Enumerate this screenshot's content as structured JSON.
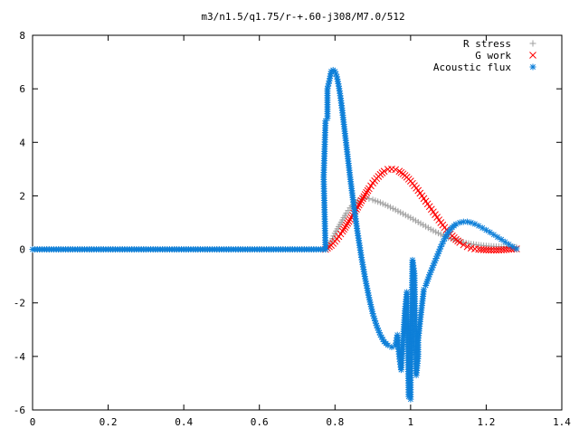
{
  "chart_data": {
    "type": "scatter",
    "title": "m3/n1.5/q1.75/r-+.60-j308/M7.0/512",
    "xlabel": "",
    "ylabel": "",
    "xlim": [
      0,
      1.4
    ],
    "ylim": [
      -6,
      8
    ],
    "x_ticks": [
      "0",
      "0.2",
      "0.4",
      "0.6",
      "0.8",
      "1",
      "1.2",
      "1.4"
    ],
    "y_ticks": [
      "-6",
      "-4",
      "-2",
      "0",
      "2",
      "4",
      "6",
      "8"
    ],
    "grid": false,
    "legend_placement": "top-right",
    "series": [
      {
        "name": "R stress",
        "color": "#a0a0a0",
        "marker": "plus",
        "points": [
          [
            0.0,
            0
          ],
          [
            0.1,
            0
          ],
          [
            0.2,
            0
          ],
          [
            0.3,
            0
          ],
          [
            0.4,
            0
          ],
          [
            0.5,
            0
          ],
          [
            0.6,
            0
          ],
          [
            0.7,
            0
          ],
          [
            0.775,
            0
          ],
          [
            0.78,
            0.05
          ],
          [
            0.79,
            0.3
          ],
          [
            0.8,
            0.6
          ],
          [
            0.81,
            0.85
          ],
          [
            0.82,
            1.1
          ],
          [
            0.83,
            1.35
          ],
          [
            0.84,
            1.55
          ],
          [
            0.85,
            1.7
          ],
          [
            0.86,
            1.82
          ],
          [
            0.87,
            1.9
          ],
          [
            0.88,
            1.92
          ],
          [
            0.89,
            1.9
          ],
          [
            0.9,
            1.85
          ],
          [
            0.92,
            1.75
          ],
          [
            0.94,
            1.62
          ],
          [
            0.96,
            1.48
          ],
          [
            0.98,
            1.33
          ],
          [
            1.0,
            1.18
          ],
          [
            1.02,
            1.02
          ],
          [
            1.04,
            0.86
          ],
          [
            1.06,
            0.7
          ],
          [
            1.08,
            0.56
          ],
          [
            1.1,
            0.44
          ],
          [
            1.12,
            0.34
          ],
          [
            1.14,
            0.26
          ],
          [
            1.16,
            0.2
          ],
          [
            1.18,
            0.16
          ],
          [
            1.2,
            0.13
          ],
          [
            1.22,
            0.11
          ],
          [
            1.24,
            0.1
          ],
          [
            1.26,
            0.09
          ],
          [
            1.28,
            0.08
          ]
        ]
      },
      {
        "name": "G work",
        "color": "#ff0000",
        "marker": "cross",
        "points": [
          [
            0.775,
            0
          ],
          [
            0.78,
            0.05
          ],
          [
            0.79,
            0.15
          ],
          [
            0.8,
            0.3
          ],
          [
            0.81,
            0.48
          ],
          [
            0.82,
            0.68
          ],
          [
            0.83,
            0.9
          ],
          [
            0.84,
            1.12
          ],
          [
            0.85,
            1.35
          ],
          [
            0.86,
            1.58
          ],
          [
            0.87,
            1.82
          ],
          [
            0.88,
            2.05
          ],
          [
            0.89,
            2.27
          ],
          [
            0.9,
            2.48
          ],
          [
            0.91,
            2.65
          ],
          [
            0.92,
            2.8
          ],
          [
            0.93,
            2.92
          ],
          [
            0.94,
            2.99
          ],
          [
            0.95,
            3.0
          ],
          [
            0.96,
            2.98
          ],
          [
            0.97,
            2.92
          ],
          [
            0.98,
            2.82
          ],
          [
            0.99,
            2.7
          ],
          [
            1.0,
            2.55
          ],
          [
            1.01,
            2.38
          ],
          [
            1.02,
            2.2
          ],
          [
            1.03,
            2.0
          ],
          [
            1.04,
            1.8
          ],
          [
            1.05,
            1.6
          ],
          [
            1.06,
            1.4
          ],
          [
            1.07,
            1.2
          ],
          [
            1.08,
            1.0
          ],
          [
            1.09,
            0.82
          ],
          [
            1.1,
            0.65
          ],
          [
            1.11,
            0.5
          ],
          [
            1.12,
            0.37
          ],
          [
            1.13,
            0.26
          ],
          [
            1.14,
            0.17
          ],
          [
            1.15,
            0.1
          ],
          [
            1.16,
            0.05
          ],
          [
            1.17,
            0.02
          ],
          [
            1.18,
            0.0
          ],
          [
            1.2,
            -0.02
          ],
          [
            1.22,
            -0.03
          ],
          [
            1.24,
            -0.02
          ],
          [
            1.26,
            0.0
          ],
          [
            1.28,
            0.02
          ]
        ]
      },
      {
        "name": "Acoustic flux",
        "color": "#0d7fd8",
        "marker": "star",
        "points": [
          [
            0.0,
            0
          ],
          [
            0.05,
            0
          ],
          [
            0.1,
            0
          ],
          [
            0.15,
            0
          ],
          [
            0.2,
            0
          ],
          [
            0.25,
            0
          ],
          [
            0.3,
            0
          ],
          [
            0.35,
            0
          ],
          [
            0.4,
            0
          ],
          [
            0.45,
            0
          ],
          [
            0.5,
            0
          ],
          [
            0.55,
            0
          ],
          [
            0.6,
            0
          ],
          [
            0.65,
            0
          ],
          [
            0.7,
            0
          ],
          [
            0.75,
            0
          ],
          [
            0.775,
            0
          ],
          [
            0.77,
            2.7
          ],
          [
            0.775,
            4.8
          ],
          [
            0.78,
            4.9
          ],
          [
            0.78,
            6.0
          ],
          [
            0.785,
            6.3
          ],
          [
            0.79,
            6.65
          ],
          [
            0.795,
            6.7
          ],
          [
            0.8,
            6.65
          ],
          [
            0.805,
            6.45
          ],
          [
            0.81,
            6.1
          ],
          [
            0.815,
            5.65
          ],
          [
            0.82,
            5.1
          ],
          [
            0.825,
            4.5
          ],
          [
            0.83,
            3.9
          ],
          [
            0.84,
            2.7
          ],
          [
            0.85,
            1.6
          ],
          [
            0.86,
            0.6
          ],
          [
            0.87,
            -0.3
          ],
          [
            0.88,
            -1.1
          ],
          [
            0.89,
            -1.8
          ],
          [
            0.9,
            -2.4
          ],
          [
            0.91,
            -2.85
          ],
          [
            0.92,
            -3.2
          ],
          [
            0.93,
            -3.45
          ],
          [
            0.94,
            -3.58
          ],
          [
            0.95,
            -3.65
          ],
          [
            0.96,
            -3.6
          ],
          [
            0.965,
            -3.2
          ],
          [
            0.97,
            -4.0
          ],
          [
            0.975,
            -4.5
          ],
          [
            0.98,
            -3.4
          ],
          [
            0.985,
            -2.3
          ],
          [
            0.99,
            -1.6
          ],
          [
            0.995,
            -5.5
          ],
          [
            1.0,
            -5.6
          ],
          [
            1.0,
            -4.8
          ],
          [
            1.005,
            -0.4
          ],
          [
            1.01,
            -0.9
          ],
          [
            1.015,
            -4.7
          ],
          [
            1.02,
            -4.0
          ],
          [
            1.02,
            -3.4
          ],
          [
            1.025,
            -2.7
          ],
          [
            1.03,
            -2.1
          ],
          [
            1.035,
            -1.5
          ],
          [
            1.04,
            -1.35
          ],
          [
            1.05,
            -0.95
          ],
          [
            1.06,
            -0.6
          ],
          [
            1.07,
            -0.25
          ],
          [
            1.08,
            0.1
          ],
          [
            1.09,
            0.4
          ],
          [
            1.1,
            0.65
          ],
          [
            1.11,
            0.82
          ],
          [
            1.12,
            0.94
          ],
          [
            1.13,
            1.0
          ],
          [
            1.14,
            1.03
          ],
          [
            1.15,
            1.03
          ],
          [
            1.16,
            1.0
          ],
          [
            1.17,
            0.95
          ],
          [
            1.18,
            0.88
          ],
          [
            1.19,
            0.8
          ],
          [
            1.2,
            0.72
          ],
          [
            1.21,
            0.64
          ],
          [
            1.22,
            0.55
          ],
          [
            1.23,
            0.46
          ],
          [
            1.24,
            0.37
          ],
          [
            1.25,
            0.28
          ],
          [
            1.26,
            0.19
          ],
          [
            1.27,
            0.1
          ],
          [
            1.28,
            0.02
          ]
        ]
      }
    ]
  }
}
